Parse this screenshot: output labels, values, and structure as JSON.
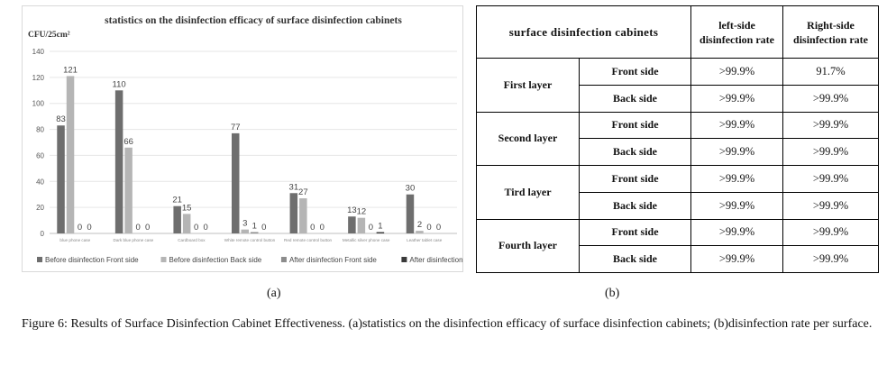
{
  "chart_data": {
    "type": "bar",
    "title": "statistics on the disinfection efficacy of surface disinfection cabinets",
    "ylabel": "CFU/25cm²",
    "xlabel": "",
    "ylim": [
      0,
      140
    ],
    "yticks": [
      0,
      20,
      40,
      60,
      80,
      100,
      120,
      140
    ],
    "grid": true,
    "legend_position": "bottom",
    "categories": [
      "blue phone case",
      "Dark blue phone case",
      "Cardboard box",
      "White remote control button",
      "Red remote control button",
      "Metallic silver phone case",
      "Leather tablet case"
    ],
    "series": [
      {
        "name": "Before disinfection Front side",
        "color": "#6e6e6e",
        "values": [
          83,
          110,
          21,
          77,
          31,
          13,
          30
        ]
      },
      {
        "name": "Before disinfection Back side",
        "color": "#b5b5b5",
        "values": [
          121,
          66,
          15,
          3,
          27,
          12,
          2
        ]
      },
      {
        "name": "After disinfection Front side",
        "color": "#8c8c8c",
        "values": [
          0,
          0,
          0,
          1,
          0,
          0,
          0
        ]
      },
      {
        "name": "After disinfection Back side",
        "color": "#3a3a3a",
        "values": [
          0,
          0,
          0,
          0,
          0,
          1,
          0
        ]
      }
    ]
  },
  "captions": {
    "a": "(a)",
    "b": "(b)"
  },
  "table": {
    "title": "surface disinfection cabinets",
    "col_left": "left-side disinfection rate",
    "col_right": "Right-side disinfection rate",
    "layers": [
      {
        "name": "First layer",
        "rows": [
          {
            "side": "Front side",
            "left": ">99.9%",
            "right": "91.7%"
          },
          {
            "side": "Back side",
            "left": ">99.9%",
            "right": ">99.9%"
          }
        ]
      },
      {
        "name": "Second layer",
        "rows": [
          {
            "side": "Front side",
            "left": ">99.9%",
            "right": ">99.9%"
          },
          {
            "side": "Back side",
            "left": ">99.9%",
            "right": ">99.9%"
          }
        ]
      },
      {
        "name": "Tird layer",
        "rows": [
          {
            "side": "Front side",
            "left": ">99.9%",
            "right": ">99.9%"
          },
          {
            "side": "Back side",
            "left": ">99.9%",
            "right": ">99.9%"
          }
        ]
      },
      {
        "name": "Fourth layer",
        "rows": [
          {
            "side": "Front side",
            "left": ">99.9%",
            "right": ">99.9%"
          },
          {
            "side": "Back side",
            "left": ">99.9%",
            "right": ">99.9%"
          }
        ]
      }
    ]
  },
  "figure_caption": "Figure 6: Results of Surface Disinfection Cabinet Effectiveness. (a)statistics on the disinfection efficacy of surface disinfection cabinets; (b)disinfection rate per surface."
}
